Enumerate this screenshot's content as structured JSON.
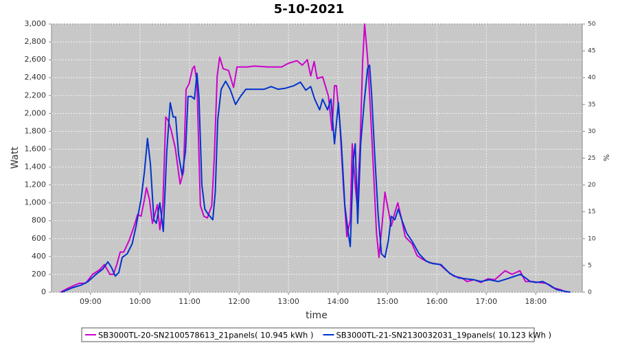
{
  "chart_data": {
    "type": "line",
    "title": "5-10-2021",
    "x_label": "time",
    "y_label": "Watt",
    "y2_label": "%",
    "xlim": [
      8.21,
      18.94
    ],
    "xticks": [
      {
        "value": 9,
        "label": "09:00"
      },
      {
        "value": 10,
        "label": "10:00"
      },
      {
        "value": 11,
        "label": "11:00"
      },
      {
        "value": 12,
        "label": "12:00"
      },
      {
        "value": 13,
        "label": "13:00"
      },
      {
        "value": 14,
        "label": "14:00"
      },
      {
        "value": 15,
        "label": "15:00"
      },
      {
        "value": 16,
        "label": "16:00"
      },
      {
        "value": 17,
        "label": "17:00"
      },
      {
        "value": 18,
        "label": "18:00"
      }
    ],
    "ylim": [
      0,
      3000
    ],
    "yticks": [
      0,
      200,
      400,
      600,
      800,
      {
        "value": 1000,
        "label": "1,000"
      },
      {
        "value": 1200,
        "label": "1,200"
      },
      {
        "value": 1400,
        "label": "1,400"
      },
      {
        "value": 1600,
        "label": "1,600"
      },
      {
        "value": 1800,
        "label": "1,800"
      },
      {
        "value": 2000,
        "label": "2,000"
      },
      {
        "value": 2200,
        "label": "2,200"
      },
      {
        "value": 2400,
        "label": "2,400"
      },
      {
        "value": 2600,
        "label": "2,600"
      },
      {
        "value": 2800,
        "label": "2,800"
      },
      {
        "value": 3000,
        "label": "3,000"
      }
    ],
    "y2lim": [
      0,
      50
    ],
    "y2ticks": [
      0,
      5,
      10,
      15,
      20,
      25,
      30,
      35,
      40,
      45,
      50
    ],
    "grid": true,
    "legend": "bottom",
    "series": [
      {
        "name": "SB3000TL-20-SN2100578613_21panels( 10.945 kWh )",
        "color": "#cc00cc",
        "x": [
          8.39,
          8.56,
          8.77,
          8.9,
          9.04,
          9.18,
          9.28,
          9.39,
          9.46,
          9.53,
          9.6,
          9.67,
          9.78,
          9.88,
          9.95,
          10.02,
          10.09,
          10.13,
          10.19,
          10.25,
          10.31,
          10.35,
          10.4,
          10.46,
          10.52,
          10.57,
          10.63,
          10.71,
          10.81,
          10.88,
          10.93,
          10.99,
          11.06,
          11.1,
          11.15,
          11.22,
          11.29,
          11.36,
          11.45,
          11.5,
          11.56,
          11.61,
          11.68,
          11.79,
          11.89,
          11.96,
          12.03,
          12.17,
          12.31,
          12.58,
          12.86,
          13.0,
          13.17,
          13.28,
          13.38,
          13.45,
          13.52,
          13.58,
          13.69,
          13.81,
          13.88,
          13.93,
          13.97,
          14.04,
          14.11,
          14.18,
          14.25,
          14.29,
          14.35,
          14.39,
          14.45,
          14.5,
          14.54,
          14.6,
          14.65,
          14.72,
          14.78,
          14.83,
          14.89,
          14.95,
          15.0,
          15.08,
          15.15,
          15.21,
          15.29,
          15.36,
          15.5,
          15.6,
          15.71,
          15.85,
          16.06,
          16.2,
          16.34,
          16.5,
          16.61,
          16.75,
          16.89,
          17.03,
          17.17,
          17.38,
          17.52,
          17.68,
          17.79,
          17.93,
          18.07,
          18.21,
          18.35,
          18.49,
          18.63
        ],
        "values": [
          0,
          50,
          100,
          100,
          200,
          250,
          310,
          200,
          200,
          310,
          450,
          450,
          580,
          740,
          870,
          850,
          1040,
          1170,
          1040,
          770,
          890,
          980,
          700,
          970,
          1960,
          1920,
          1810,
          1620,
          1210,
          1350,
          2270,
          2330,
          2500,
          2530,
          2350,
          970,
          850,
          830,
          970,
          1500,
          2420,
          2630,
          2500,
          2480,
          2290,
          2520,
          2520,
          2520,
          2530,
          2520,
          2520,
          2560,
          2590,
          2540,
          2600,
          2420,
          2580,
          2390,
          2410,
          2190,
          1810,
          2310,
          2310,
          1880,
          1200,
          620,
          810,
          1660,
          1200,
          970,
          1660,
          2580,
          3000,
          2620,
          2120,
          1350,
          660,
          390,
          740,
          1120,
          970,
          740,
          890,
          1000,
          810,
          620,
          540,
          410,
          370,
          330,
          310,
          240,
          180,
          160,
          120,
          140,
          110,
          150,
          140,
          240,
          200,
          240,
          120,
          120,
          110,
          100,
          50,
          30,
          0
        ]
      },
      {
        "name": "SB3000TL-21-SN2130032031_19panels( 10.123 kWh )",
        "color": "#0033cc",
        "x": [
          8.42,
          8.63,
          8.81,
          8.95,
          9.11,
          9.25,
          9.35,
          9.42,
          9.5,
          9.57,
          9.64,
          9.74,
          9.84,
          9.92,
          10.02,
          10.09,
          10.15,
          10.21,
          10.28,
          10.33,
          10.4,
          10.47,
          10.54,
          10.61,
          10.67,
          10.72,
          10.78,
          10.85,
          10.92,
          10.97,
          11.04,
          11.1,
          11.15,
          11.19,
          11.25,
          11.31,
          11.38,
          11.47,
          11.52,
          11.57,
          11.64,
          11.73,
          11.82,
          11.93,
          12.03,
          12.14,
          12.31,
          12.51,
          12.65,
          12.79,
          12.93,
          13.11,
          13.24,
          13.35,
          13.45,
          13.53,
          13.63,
          13.69,
          13.79,
          13.86,
          13.93,
          14.01,
          14.07,
          14.14,
          14.21,
          14.25,
          14.31,
          14.35,
          14.4,
          14.46,
          14.53,
          14.6,
          14.64,
          14.68,
          14.74,
          14.81,
          14.88,
          14.95,
          15.02,
          15.08,
          15.15,
          15.22,
          15.29,
          15.39,
          15.5,
          15.64,
          15.78,
          15.92,
          16.08,
          16.26,
          16.44,
          16.58,
          16.75,
          16.89,
          17.06,
          17.24,
          17.42,
          17.58,
          17.69,
          17.79,
          17.89,
          18.0,
          18.14,
          18.28,
          18.42,
          18.59,
          18.7
        ],
        "values": [
          0,
          50,
          80,
          120,
          200,
          260,
          340,
          280,
          180,
          220,
          390,
          430,
          540,
          740,
          1040,
          1350,
          1720,
          1430,
          810,
          770,
          1000,
          680,
          1580,
          2120,
          1960,
          1960,
          1540,
          1310,
          1580,
          2190,
          2190,
          2160,
          2450,
          2190,
          1200,
          930,
          870,
          810,
          1120,
          1930,
          2270,
          2360,
          2270,
          2100,
          2190,
          2270,
          2270,
          2270,
          2300,
          2270,
          2280,
          2310,
          2350,
          2260,
          2300,
          2160,
          2040,
          2160,
          2040,
          2160,
          1660,
          2120,
          1660,
          970,
          660,
          510,
          1470,
          1660,
          770,
          1660,
          2120,
          2500,
          2540,
          2230,
          1580,
          890,
          430,
          390,
          580,
          850,
          810,
          930,
          810,
          660,
          570,
          430,
          350,
          320,
          310,
          210,
          160,
          150,
          140,
          120,
          140,
          120,
          150,
          180,
          200,
          160,
          120,
          110,
          120,
          80,
          30,
          10,
          0
        ]
      }
    ]
  }
}
